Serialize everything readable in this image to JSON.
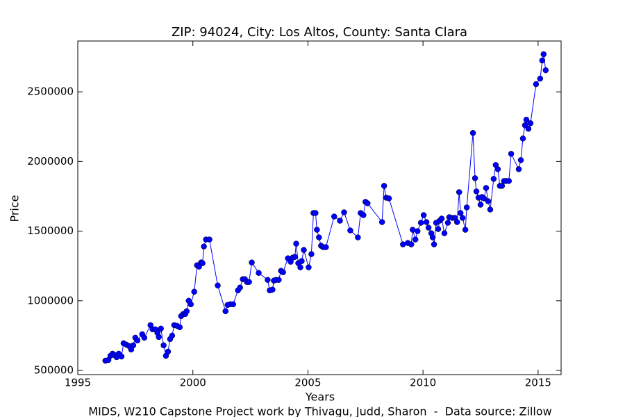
{
  "chart_data": {
    "type": "line",
    "title": "ZIP: 94024, City: Los Altos, County: Santa Clara",
    "x_label": "Years",
    "y_label": "Price",
    "caption": "MIDS, W210 Capstone Project work by Thivagu, Judd, Sharon  -  Data source: Zillow",
    "xlim": [
      1995,
      2016
    ],
    "xticks": [
      1995,
      2000,
      2005,
      2010,
      2015
    ],
    "ylim": [
      470000,
      2865000
    ],
    "yticks": [
      500000,
      1000000,
      1500000,
      2000000,
      2500000
    ],
    "markers": true,
    "x": [
      1996.2,
      1996.33,
      1996.42,
      1996.51,
      1996.6,
      1996.69,
      1996.78,
      1996.9,
      1996.99,
      1997.11,
      1997.23,
      1997.32,
      1997.41,
      1997.5,
      1997.59,
      1997.8,
      1997.89,
      1998.16,
      1998.25,
      1998.37,
      1998.46,
      1998.52,
      1998.61,
      1998.73,
      1998.83,
      1998.92,
      1999.01,
      1999.1,
      1999.19,
      1999.31,
      1999.43,
      1999.49,
      1999.58,
      1999.67,
      1999.73,
      1999.82,
      1999.91,
      2000.06,
      2000.18,
      2000.27,
      2000.36,
      2000.42,
      2000.48,
      2000.57,
      2000.72,
      2001.08,
      2001.42,
      2001.51,
      2001.63,
      2001.75,
      2001.96,
      2002.05,
      2002.17,
      2002.26,
      2002.35,
      2002.44,
      2002.56,
      2002.86,
      2003.25,
      2003.34,
      2003.46,
      2003.52,
      2003.61,
      2003.73,
      2003.83,
      2003.92,
      2004.13,
      2004.25,
      2004.34,
      2004.43,
      2004.49,
      2004.58,
      2004.67,
      2004.73,
      2004.82,
      2005.03,
      2005.15,
      2005.24,
      2005.33,
      2005.39,
      2005.48,
      2005.57,
      2005.66,
      2005.78,
      2006.14,
      2006.39,
      2006.57,
      2006.84,
      2007.17,
      2007.29,
      2007.41,
      2007.5,
      2007.59,
      2008.22,
      2008.31,
      2008.4,
      2008.52,
      2009.13,
      2009.34,
      2009.49,
      2009.55,
      2009.67,
      2009.76,
      2009.91,
      2010.03,
      2010.15,
      2010.24,
      2010.36,
      2010.42,
      2010.48,
      2010.57,
      2010.66,
      2010.72,
      2010.81,
      2010.93,
      2011.08,
      2011.14,
      2011.27,
      2011.39,
      2011.48,
      2011.57,
      2011.63,
      2011.72,
      2011.84,
      2011.9,
      2012.17,
      2012.26,
      2012.32,
      2012.41,
      2012.5,
      2012.56,
      2012.65,
      2012.74,
      2012.83,
      2012.92,
      2013.07,
      2013.16,
      2013.25,
      2013.34,
      2013.43,
      2013.52,
      2013.61,
      2013.73,
      2013.83,
      2014.16,
      2014.25,
      2014.34,
      2014.43,
      2014.49,
      2014.58,
      2014.67,
      2014.91,
      2015.09,
      2015.18,
      2015.24,
      2015.33
    ],
    "series": [
      {
        "color": "#0000ff",
        "values": [
          570000,
          575000,
          605000,
          620000,
          610000,
          595000,
          620000,
          600000,
          695000,
          685000,
          675000,
          650000,
          680000,
          735000,
          715000,
          760000,
          735000,
          825000,
          795000,
          795000,
          770000,
          740000,
          800000,
          680000,
          605000,
          635000,
          725000,
          750000,
          825000,
          820000,
          810000,
          890000,
          905000,
          905000,
          925000,
          1000000,
          975000,
          1065000,
          1255000,
          1245000,
          1275000,
          1270000,
          1390000,
          1440000,
          1440000,
          1110000,
          925000,
          970000,
          975000,
          975000,
          1075000,
          1095000,
          1155000,
          1155000,
          1135000,
          1135000,
          1275000,
          1200000,
          1150000,
          1075000,
          1080000,
          1145000,
          1150000,
          1150000,
          1215000,
          1205000,
          1305000,
          1280000,
          1310000,
          1315000,
          1410000,
          1270000,
          1240000,
          1285000,
          1365000,
          1240000,
          1335000,
          1630000,
          1630000,
          1510000,
          1455000,
          1395000,
          1385000,
          1385000,
          1605000,
          1575000,
          1635000,
          1505000,
          1455000,
          1630000,
          1615000,
          1710000,
          1700000,
          1565000,
          1825000,
          1740000,
          1735000,
          1405000,
          1415000,
          1405000,
          1510000,
          1440000,
          1500000,
          1560000,
          1615000,
          1565000,
          1525000,
          1485000,
          1455000,
          1405000,
          1560000,
          1515000,
          1575000,
          1590000,
          1485000,
          1560000,
          1600000,
          1595000,
          1595000,
          1565000,
          1780000,
          1630000,
          1595000,
          1510000,
          1670000,
          2205000,
          1880000,
          1785000,
          1740000,
          1690000,
          1745000,
          1735000,
          1810000,
          1715000,
          1655000,
          1875000,
          1975000,
          1945000,
          1825000,
          1825000,
          1860000,
          1860000,
          1860000,
          2055000,
          1945000,
          2010000,
          2165000,
          2260000,
          2300000,
          2235000,
          2275000,
          2555000,
          2595000,
          2725000,
          2770000,
          2655000
        ]
      }
    ]
  }
}
